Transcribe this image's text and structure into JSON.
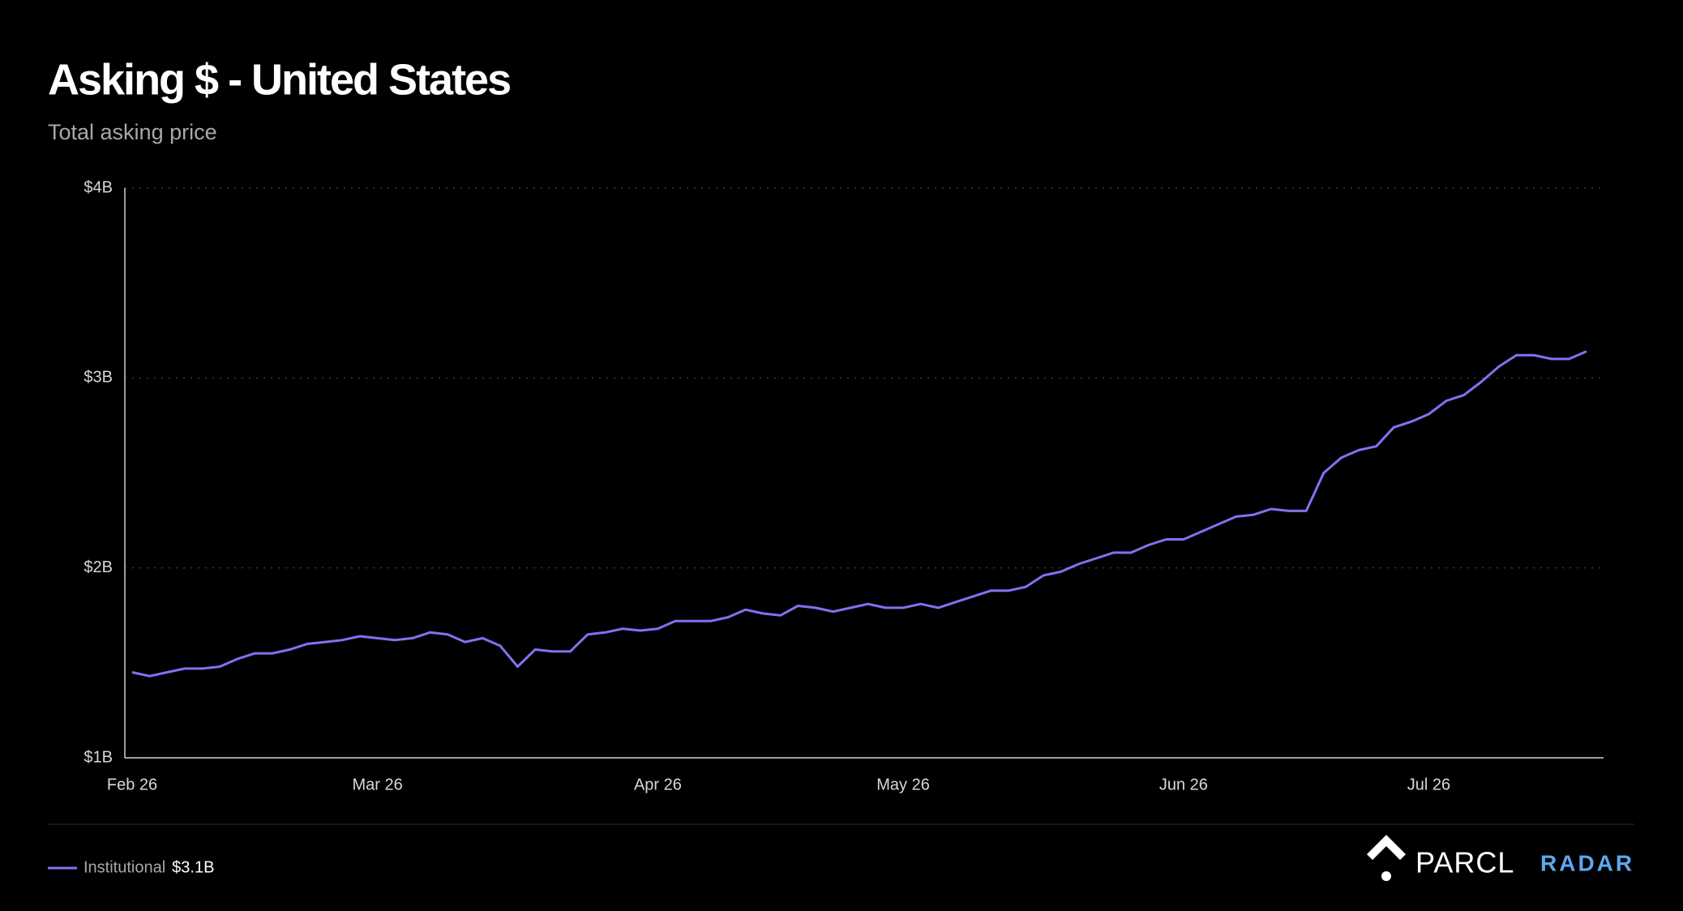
{
  "chart_data": {
    "type": "line",
    "title": "Asking $ - United States",
    "subtitle": "Total asking price",
    "categories": [
      "Feb 26",
      null,
      null,
      null,
      null,
      null,
      null,
      null,
      null,
      null,
      null,
      null,
      null,
      null,
      "Mar 26",
      null,
      null,
      null,
      null,
      null,
      null,
      null,
      null,
      null,
      null,
      null,
      null,
      null,
      null,
      null,
      "Apr 26",
      null,
      null,
      null,
      null,
      null,
      null,
      null,
      null,
      null,
      null,
      null,
      null,
      null,
      "May 26",
      null,
      null,
      null,
      null,
      null,
      null,
      null,
      null,
      null,
      null,
      null,
      null,
      null,
      null,
      null,
      "Jun 26",
      null,
      null,
      null,
      null,
      null,
      null,
      null,
      null,
      null,
      null,
      null,
      null,
      null,
      "Jul 26",
      null,
      null,
      null,
      null,
      null,
      null,
      null,
      null,
      null
    ],
    "series": [
      {
        "name": "Institutional",
        "color": "#8b6cf2",
        "values": [
          1.45,
          1.43,
          1.45,
          1.47,
          1.47,
          1.48,
          1.52,
          1.55,
          1.55,
          1.57,
          1.6,
          1.61,
          1.62,
          1.64,
          1.63,
          1.62,
          1.63,
          1.66,
          1.65,
          1.61,
          1.63,
          1.59,
          1.48,
          1.57,
          1.56,
          1.56,
          1.65,
          1.66,
          1.68,
          1.67,
          1.68,
          1.72,
          1.72,
          1.72,
          1.74,
          1.78,
          1.76,
          1.75,
          1.8,
          1.79,
          1.77,
          1.79,
          1.81,
          1.79,
          1.79,
          1.81,
          1.79,
          1.82,
          1.85,
          1.88,
          1.88,
          1.9,
          1.96,
          1.98,
          2.02,
          2.05,
          2.08,
          2.08,
          2.12,
          2.15,
          2.15,
          2.19,
          2.23,
          2.27,
          2.28,
          2.31,
          2.3,
          2.3,
          2.5,
          2.58,
          2.62,
          2.64,
          2.74,
          2.77,
          2.81,
          2.88,
          2.91,
          2.98,
          3.06,
          3.12,
          3.12,
          3.1,
          3.1,
          3.14
        ],
        "latest_label": "$3.1B"
      }
    ],
    "ylim": [
      1,
      4
    ],
    "yticks": [
      {
        "value": 1,
        "label": "$1B"
      },
      {
        "value": 2,
        "label": "$2B"
      },
      {
        "value": 3,
        "label": "$3B"
      },
      {
        "value": 4,
        "label": "$4B"
      }
    ],
    "grid": true
  },
  "brand": {
    "name": "PARCL",
    "product": "RADAR"
  }
}
